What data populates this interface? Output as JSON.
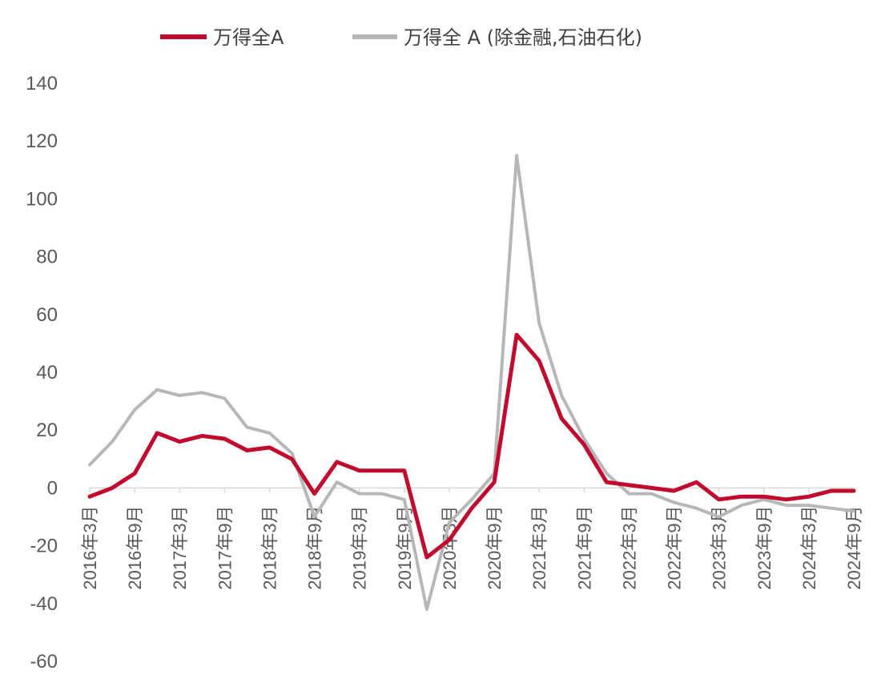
{
  "chart_data": {
    "type": "line",
    "title": "",
    "xlabel": "",
    "ylabel": "",
    "ylim": [
      -60,
      140
    ],
    "yticks": [
      -60,
      -40,
      -20,
      0,
      20,
      40,
      60,
      80,
      100,
      120,
      140
    ],
    "ytick_labels": [
      "-60",
      "-40",
      "-20",
      "0",
      "20",
      "40",
      "60",
      "80",
      "100",
      "120",
      "140"
    ],
    "xtick_labels": [
      "2016年3月",
      "2016年9月",
      "2017年3月",
      "2017年9月",
      "2018年3月",
      "2018年9月",
      "2019年3月",
      "2019年9月",
      "2020年3月",
      "2020年9月",
      "2021年3月",
      "2021年9月",
      "2022年3月",
      "2022年9月",
      "2023年3月",
      "2023年9月",
      "2024年3月",
      "2024年9月"
    ],
    "x": [
      "2016-03",
      "2016-06",
      "2016-09",
      "2016-12",
      "2017-03",
      "2017-06",
      "2017-09",
      "2017-12",
      "2018-03",
      "2018-06",
      "2018-09",
      "2018-12",
      "2019-03",
      "2019-06",
      "2019-09",
      "2019-12",
      "2020-03",
      "2020-06",
      "2020-09",
      "2020-12",
      "2021-03",
      "2021-06",
      "2021-09",
      "2021-12",
      "2022-03",
      "2022-06",
      "2022-09",
      "2022-12",
      "2023-03",
      "2023-06",
      "2023-09",
      "2023-12",
      "2024-03",
      "2024-06",
      "2024-09"
    ],
    "legend_position": "top",
    "grid": false,
    "series": [
      {
        "name": "万得全A",
        "color": "#c00a2e",
        "values": [
          -3,
          0,
          5,
          19,
          16,
          18,
          17,
          13,
          14,
          10,
          -2,
          9,
          6,
          6,
          6,
          -24,
          -18,
          -7,
          2,
          53,
          44,
          24,
          15,
          2,
          1,
          0,
          -1,
          2,
          -4,
          -3,
          -3,
          -4,
          -3,
          -1,
          -1
        ]
      },
      {
        "name": "万得全 A (除金融,石油石化)",
        "color": "#b7b7b7",
        "values": [
          8,
          16,
          27,
          34,
          32,
          33,
          31,
          21,
          19,
          12,
          -10,
          2,
          -2,
          -2,
          -4,
          -42,
          -12,
          -4,
          5,
          115,
          57,
          32,
          17,
          5,
          -2,
          -2,
          -5,
          -7,
          -10,
          -6,
          -4,
          -6,
          -6,
          -7,
          -8
        ]
      }
    ]
  }
}
